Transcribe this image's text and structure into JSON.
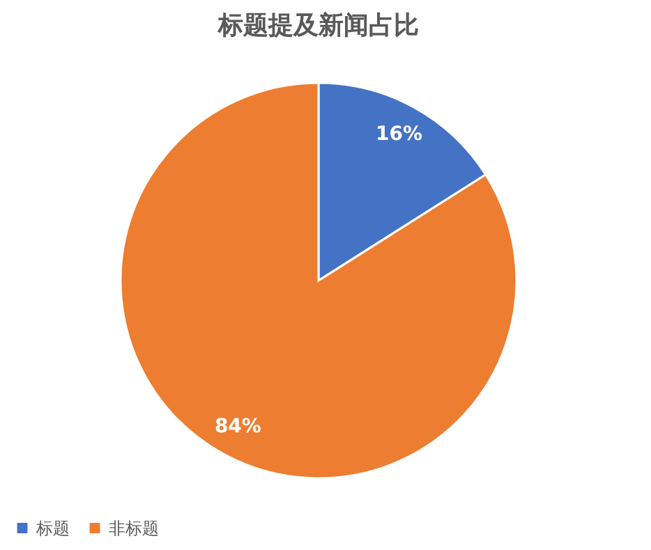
{
  "chart_data": {
    "type": "pie",
    "title": "标题提及新闻占比",
    "categories": [
      "标题",
      "非标题"
    ],
    "values": [
      16,
      84
    ],
    "colors": [
      "#4472c4",
      "#ed7d31"
    ],
    "value_labels": [
      "16%",
      "84%"
    ],
    "legend": "bottom"
  }
}
